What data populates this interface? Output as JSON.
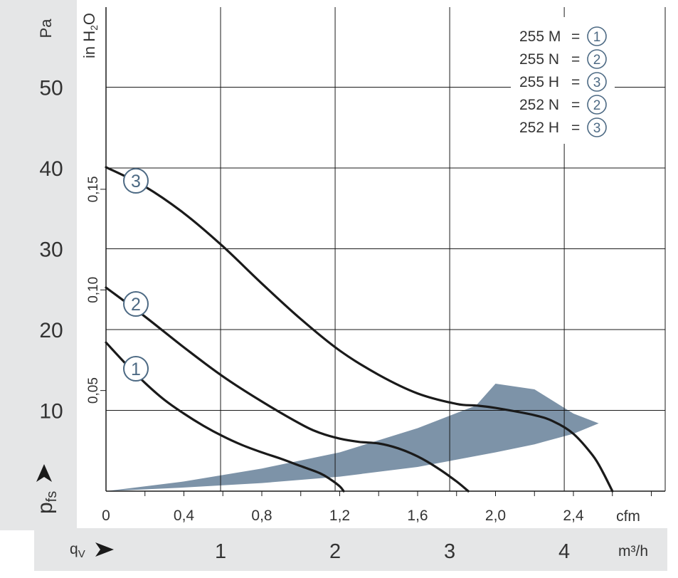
{
  "chart_data": {
    "type": "line",
    "left_axis": {
      "unit": "Pa",
      "ticks": [
        "10",
        "20",
        "30",
        "40",
        "50"
      ],
      "ylim": [
        0,
        55
      ]
    },
    "inner_axis": {
      "unit_main": "in H",
      "unit_sub": "2",
      "unit_tail": "O",
      "ticks": [
        "0,05",
        "0,10",
        "0,15"
      ],
      "ratio_pa_per_unit": 249.1
    },
    "x_cfm": {
      "unit": "cfm",
      "ticks": [
        "0",
        "0,4",
        "0,8",
        "1,2",
        "1,6",
        "2,0",
        "2,4"
      ],
      "xlim": [
        0,
        2.8
      ]
    },
    "x_m3h": {
      "unit": "m³/h",
      "ticks": [
        "1",
        "2",
        "3",
        "4"
      ],
      "xlim": [
        0,
        4.76
      ]
    },
    "y_symbol": "p",
    "y_symbol_sub": "fs",
    "x_symbol": "q",
    "x_symbol_sub": "V",
    "legend": [
      {
        "model": "255 M",
        "eq": "=",
        "curve": "1"
      },
      {
        "model": "255 N",
        "eq": "=",
        "curve": "2"
      },
      {
        "model": "255 H",
        "eq": "=",
        "curve": "3"
      },
      {
        "model": "252 N",
        "eq": "=",
        "curve": "2"
      },
      {
        "model": "252 H",
        "eq": "=",
        "curve": "3"
      }
    ],
    "series": [
      {
        "curve": "1",
        "x": [
          0,
          0.1,
          0.2,
          0.3,
          0.4,
          0.5,
          0.6,
          0.7,
          0.8,
          0.9,
          1.0,
          1.1,
          1.15,
          1.2,
          1.22
        ],
        "y": [
          18.4,
          15.8,
          13.4,
          11.3,
          9.6,
          8.1,
          6.8,
          5.7,
          4.8,
          4.0,
          3.1,
          2.2,
          1.5,
          0.6,
          0
        ]
      },
      {
        "curve": "2",
        "x": [
          0,
          0.2,
          0.4,
          0.6,
          0.8,
          1.0,
          1.1,
          1.2,
          1.3,
          1.4,
          1.5,
          1.6,
          1.7,
          1.8,
          1.86
        ],
        "y": [
          25.2,
          21.6,
          17.8,
          14.2,
          11.1,
          8.3,
          7.2,
          6.5,
          6.1,
          5.9,
          5.3,
          4.3,
          2.9,
          1.2,
          0
        ]
      },
      {
        "curve": "3",
        "x": [
          0,
          0.2,
          0.4,
          0.6,
          0.8,
          1.0,
          1.2,
          1.4,
          1.6,
          1.8,
          1.9,
          2.0,
          2.2,
          2.3,
          2.4,
          2.5,
          2.55,
          2.6
        ],
        "y": [
          40.1,
          37.7,
          34.4,
          30.3,
          25.7,
          21.3,
          17.4,
          14.4,
          12.1,
          10.8,
          10.6,
          10.3,
          9.4,
          8.6,
          7.1,
          4.4,
          2.4,
          0
        ]
      }
    ],
    "operating_band_upper": {
      "x": [
        0,
        0.4,
        0.8,
        1.2,
        1.6,
        1.9,
        2.0,
        2.2,
        2.4,
        2.53
      ],
      "y": [
        0,
        1.2,
        2.8,
        4.8,
        7.8,
        10.6,
        13.3,
        12.6,
        9.6,
        8.4
      ]
    },
    "operating_band_lower": {
      "x": [
        2.53,
        2.4,
        2.2,
        2.0,
        1.6,
        1.2,
        0.8,
        0.4,
        0
      ],
      "y": [
        8.4,
        7.1,
        5.8,
        4.8,
        3.0,
        1.8,
        1.0,
        0.45,
        0
      ]
    },
    "colors": {
      "curve": "#1a1a1a",
      "band": "#7d93a8",
      "grid": "#1a1a1a",
      "panel": "#e5e6e7",
      "circle": "#4d6a84"
    }
  }
}
